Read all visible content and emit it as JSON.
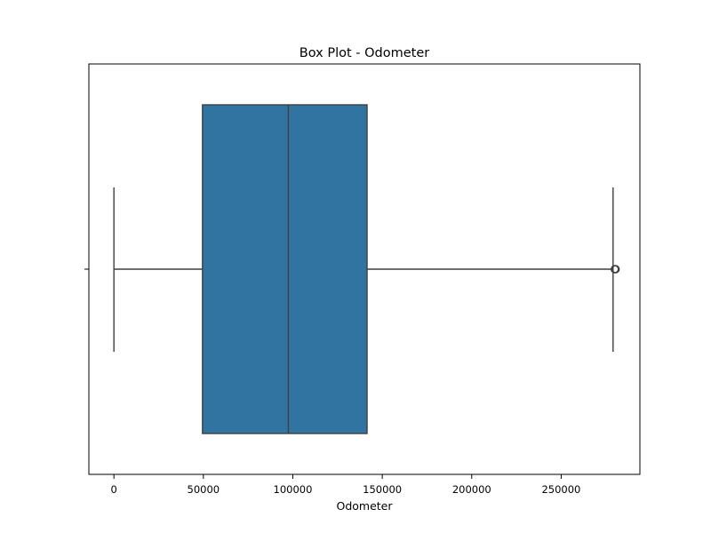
{
  "chart_data": {
    "type": "box",
    "title": "Box Plot - Odometer",
    "xlabel": "Odometer",
    "ylabel": "",
    "xlim": [
      -14000,
      294000
    ],
    "xticks": [
      0,
      50000,
      100000,
      150000,
      200000,
      250000
    ],
    "xtick_labels": [
      "0",
      "50000",
      "100000",
      "150000",
      "200000",
      "250000"
    ],
    "grid": false,
    "box": {
      "min": 0,
      "q1": 49500,
      "median": 97500,
      "q3": 141500,
      "max": 279000,
      "outliers": [
        280000,
        280400
      ]
    },
    "colors": {
      "box_fill": "#3274a1",
      "line": "#3f3f3f"
    }
  }
}
